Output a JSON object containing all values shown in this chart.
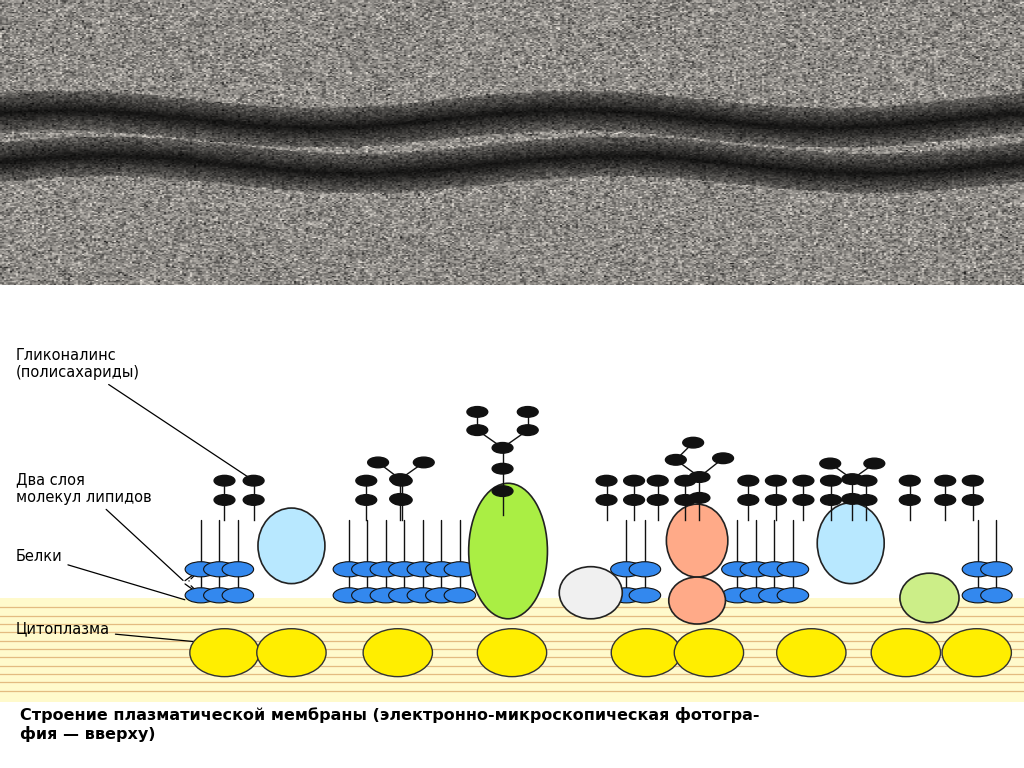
{
  "label_glycocalyx": "Гликоналинс\n(полисахариды)",
  "label_lipids": "Два слоя\nмолекул липидов",
  "label_proteins": "Белки",
  "label_cytoplasm": "Цитоплазма",
  "caption": "Строение плазматической мембраны (электронно-микроскопическая фотогра-\nфия — вверху)",
  "bg_color": "#ffffff",
  "cytoplasm_color": "#fffacc",
  "cytoplasm_stripe_color": "#c8804040",
  "lipid_head_color": "#4499ee",
  "glycan_color": "#111111",
  "protein_light_blue": "#b8e8ff",
  "protein_green": "#aaee44",
  "protein_orange": "#ffaa88",
  "protein_yellow_green": "#ccee88",
  "protein_white": "#f0f0f0",
  "protein_yellow": "#ffee00",
  "photo_mean": 0.58,
  "photo_std": 0.15
}
